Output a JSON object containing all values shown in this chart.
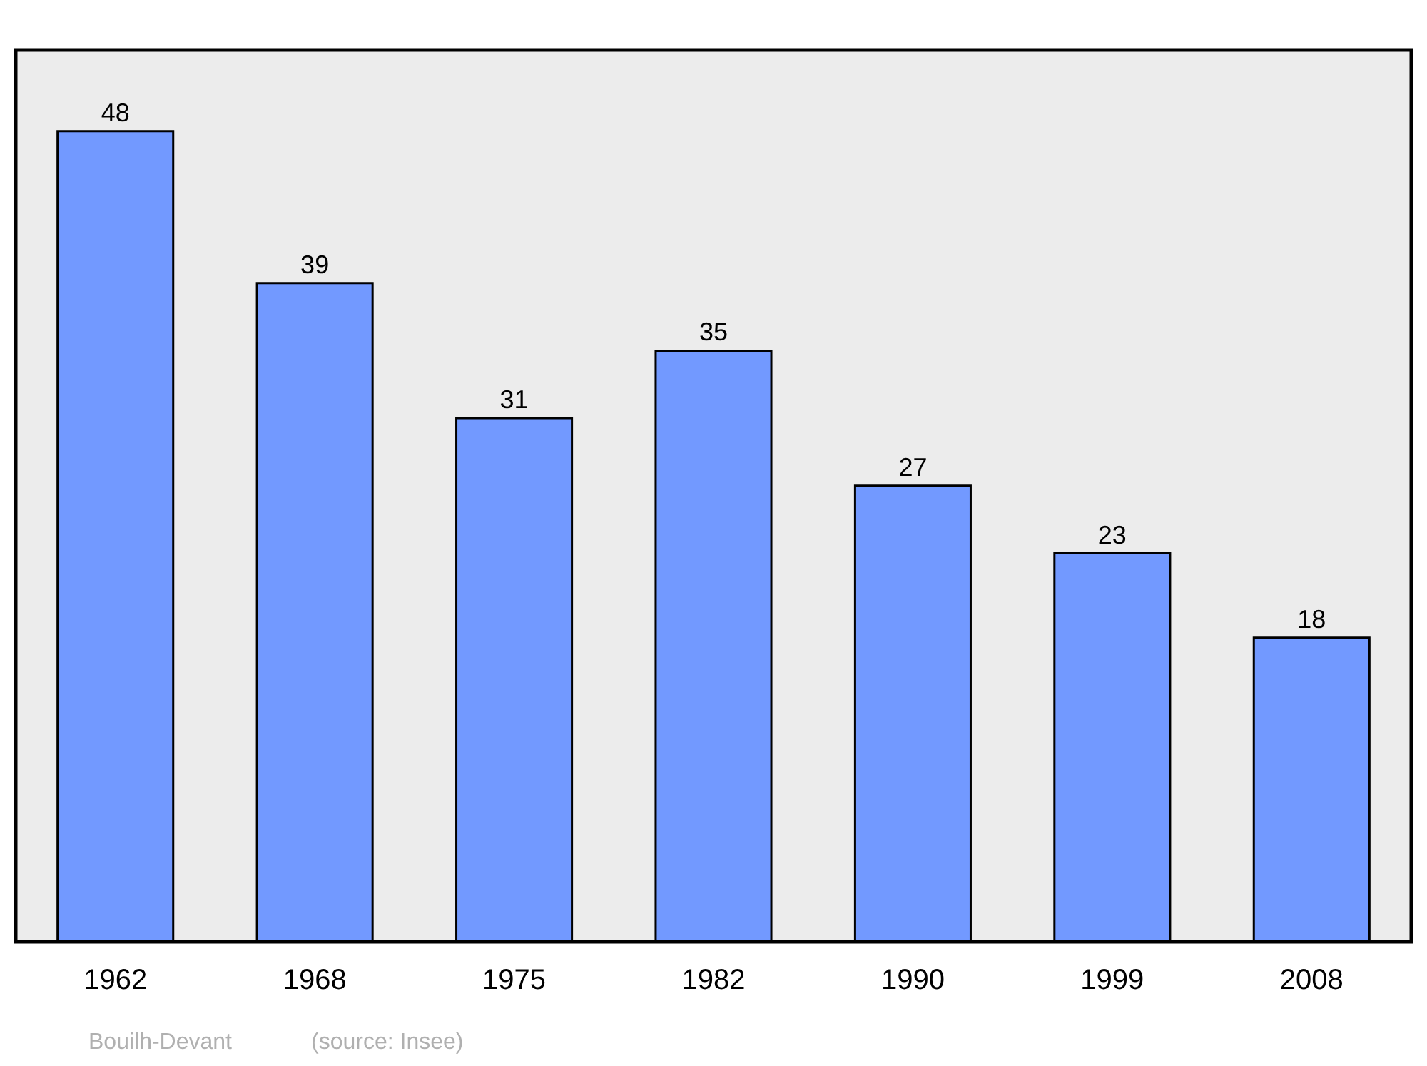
{
  "chart_data": {
    "type": "bar",
    "categories": [
      "1962",
      "1968",
      "1975",
      "1982",
      "1990",
      "1999",
      "2008"
    ],
    "values": [
      48,
      39,
      31,
      35,
      27,
      23,
      18
    ],
    "color": "#7299ff",
    "ylim": [
      0,
      52.8
    ],
    "data_labels": true,
    "grid": false,
    "tick_labels": "x",
    "annotations": [
      "Bouilh-Devant",
      "(source: Insee)"
    ]
  }
}
